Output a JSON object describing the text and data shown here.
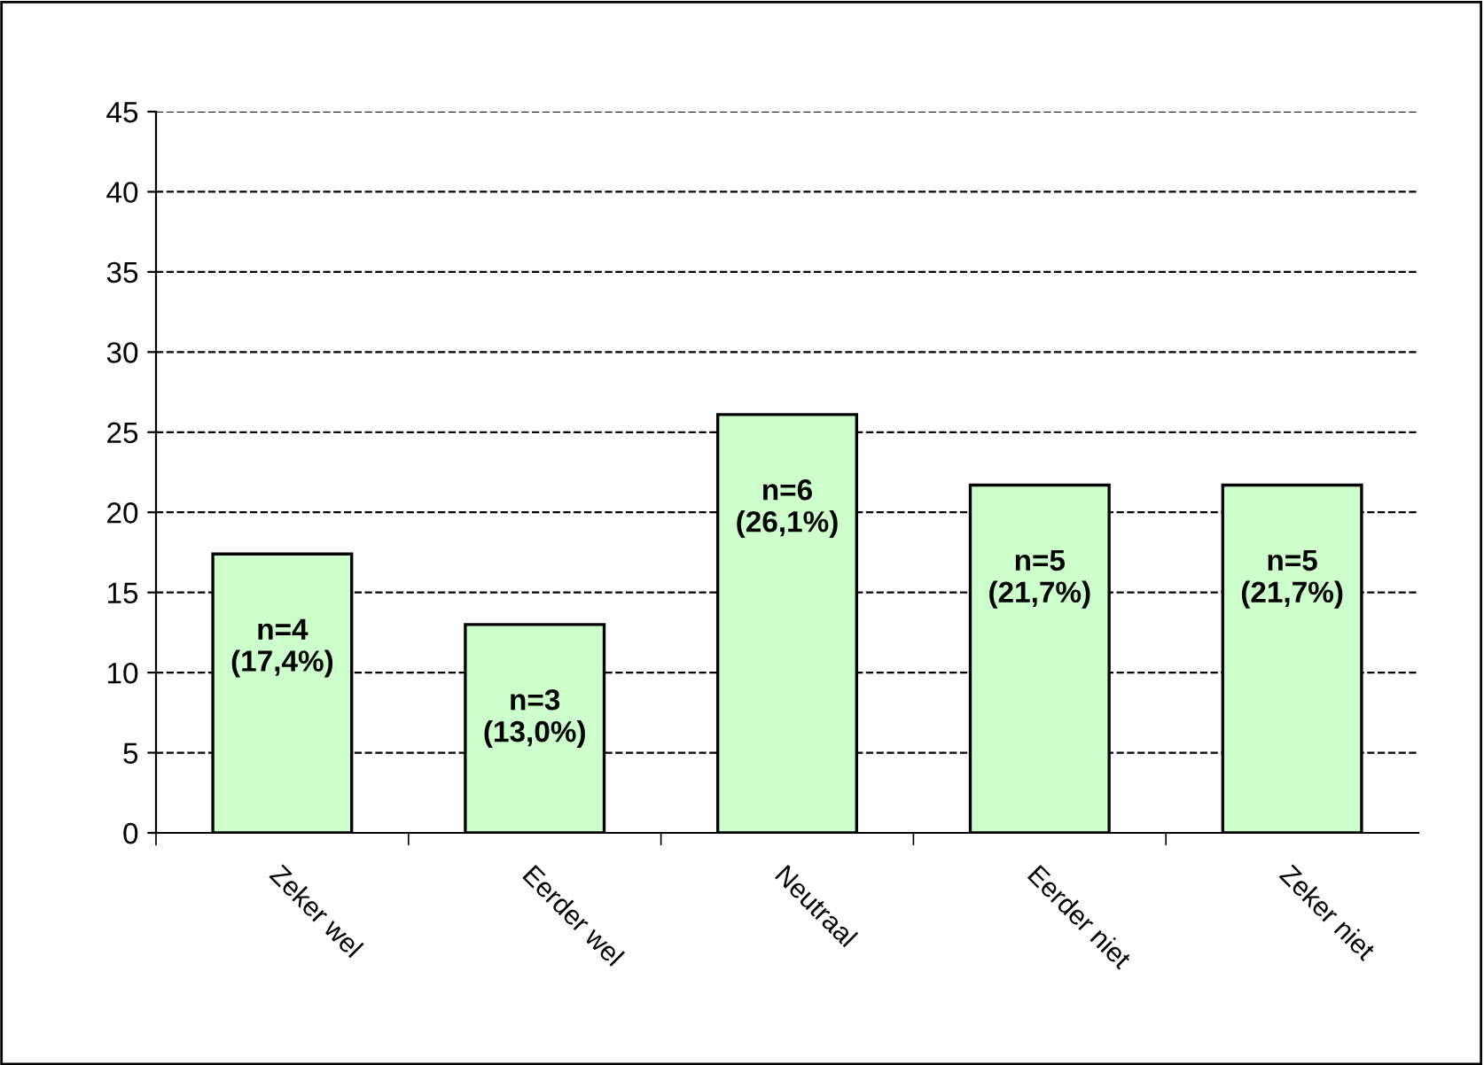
{
  "chart_data": {
    "type": "bar",
    "categories": [
      "Zeker wel",
      "Eerder wel",
      "Neutraal",
      "Eerder niet",
      "Zeker niet"
    ],
    "values": [
      17.4,
      13.0,
      26.1,
      21.7,
      21.7
    ],
    "value_labels": [
      "n=4\n(17,4%)",
      "n=3\n(13,0%)",
      "n=6\n(26,1%)",
      "n=5\n(21,7%)",
      "n=5\n(21,7%)"
    ],
    "color": "#ccffcc",
    "ylim": [
      0,
      45
    ],
    "yticks": [
      0,
      5,
      10,
      15,
      20,
      25,
      30,
      35,
      40,
      45
    ],
    "grid": "y",
    "line_style": "dashed",
    "legend": false
  }
}
